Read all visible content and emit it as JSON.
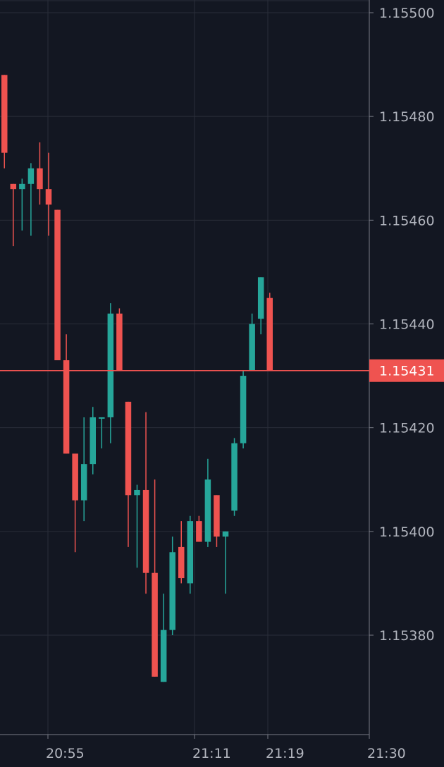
{
  "chart_data": {
    "type": "candlestick",
    "ylim": [
      1.1536,
      1.15502
    ],
    "grid": true,
    "colors": {
      "background": "#131722",
      "grid": "#2a2e39",
      "axis_text": "#b2b5be",
      "up": "#26a69a",
      "down": "#ef5350",
      "price_line": "#ef5350"
    },
    "y_ticks": [
      "1.15500",
      "1.15480",
      "1.15460",
      "1.15440",
      "1.15420",
      "1.15400",
      "1.15380"
    ],
    "x_ticks": [
      "20:55",
      "21:11",
      "21:19",
      "21:30"
    ],
    "last_price": "1.15431",
    "candles": [
      {
        "o": 1.15488,
        "h": 1.15488,
        "l": 1.1547,
        "c": 1.15473
      },
      {
        "o": 1.15467,
        "h": 1.15467,
        "l": 1.15455,
        "c": 1.15466
      },
      {
        "o": 1.15466,
        "h": 1.15468,
        "l": 1.15458,
        "c": 1.15467
      },
      {
        "o": 1.15467,
        "h": 1.15471,
        "l": 1.15457,
        "c": 1.1547
      },
      {
        "o": 1.1547,
        "h": 1.15475,
        "l": 1.15463,
        "c": 1.15466
      },
      {
        "o": 1.15466,
        "h": 1.15473,
        "l": 1.15457,
        "c": 1.15463
      },
      {
        "o": 1.15462,
        "h": 1.15462,
        "l": 1.15433,
        "c": 1.15433
      },
      {
        "o": 1.15433,
        "h": 1.15438,
        "l": 1.15415,
        "c": 1.15415
      },
      {
        "o": 1.15415,
        "h": 1.15415,
        "l": 1.15396,
        "c": 1.15406
      },
      {
        "o": 1.15406,
        "h": 1.15422,
        "l": 1.15402,
        "c": 1.15413
      },
      {
        "o": 1.15413,
        "h": 1.15424,
        "l": 1.15411,
        "c": 1.15422
      },
      {
        "o": 1.15422,
        "h": 1.15422,
        "l": 1.15416,
        "c": 1.15422
      },
      {
        "o": 1.15422,
        "h": 1.15444,
        "l": 1.15417,
        "c": 1.15442
      },
      {
        "o": 1.15442,
        "h": 1.15443,
        "l": 1.15431,
        "c": 1.15431
      },
      {
        "o": 1.15425,
        "h": 1.15425,
        "l": 1.15397,
        "c": 1.15407
      },
      {
        "o": 1.15407,
        "h": 1.15409,
        "l": 1.15393,
        "c": 1.15408
      },
      {
        "o": 1.15408,
        "h": 1.15423,
        "l": 1.15388,
        "c": 1.15392
      },
      {
        "o": 1.15392,
        "h": 1.1541,
        "l": 1.15372,
        "c": 1.15372
      },
      {
        "o": 1.15371,
        "h": 1.15388,
        "l": 1.15371,
        "c": 1.15381
      },
      {
        "o": 1.15381,
        "h": 1.15399,
        "l": 1.1538,
        "c": 1.15396
      },
      {
        "o": 1.15397,
        "h": 1.15402,
        "l": 1.1539,
        "c": 1.15391
      },
      {
        "o": 1.1539,
        "h": 1.15403,
        "l": 1.15388,
        "c": 1.15402
      },
      {
        "o": 1.15402,
        "h": 1.15403,
        "l": 1.15398,
        "c": 1.15398
      },
      {
        "o": 1.15398,
        "h": 1.15414,
        "l": 1.15397,
        "c": 1.1541
      },
      {
        "o": 1.15407,
        "h": 1.15407,
        "l": 1.15397,
        "c": 1.15399
      },
      {
        "o": 1.15399,
        "h": 1.154,
        "l": 1.15388,
        "c": 1.154
      },
      {
        "o": 1.15404,
        "h": 1.15418,
        "l": 1.15403,
        "c": 1.15417
      },
      {
        "o": 1.15417,
        "h": 1.15431,
        "l": 1.15416,
        "c": 1.1543
      },
      {
        "o": 1.15431,
        "h": 1.15442,
        "l": 1.15431,
        "c": 1.1544
      },
      {
        "o": 1.15441,
        "h": 1.15449,
        "l": 1.15438,
        "c": 1.15449
      },
      {
        "o": 1.15445,
        "h": 1.15446,
        "l": 1.15431,
        "c": 1.15431
      }
    ]
  }
}
